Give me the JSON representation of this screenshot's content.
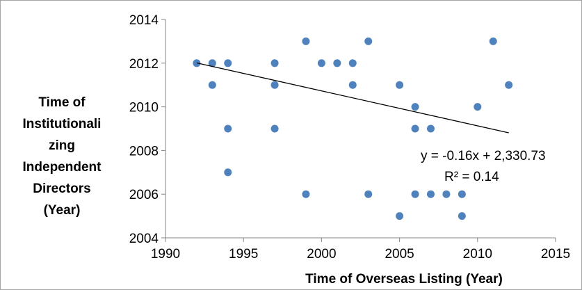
{
  "chart_data": {
    "type": "scatter",
    "title": "",
    "xlabel": "Time of Overseas Listing (Year)",
    "ylabel_lines": [
      "Time of",
      "Institutionali",
      "zing",
      "Independent",
      "Directors",
      "(Year)"
    ],
    "xlim": [
      1990,
      2015
    ],
    "ylim": [
      2004,
      2014
    ],
    "x_ticks": [
      "1990",
      "1995",
      "2000",
      "2005",
      "2010",
      "2015"
    ],
    "y_ticks": [
      "2004",
      "2006",
      "2008",
      "2010",
      "2012",
      "2014"
    ],
    "grid": false,
    "marker_color": "#4f81bd",
    "points": [
      {
        "x": 1992,
        "y": 2012
      },
      {
        "x": 1993,
        "y": 2012
      },
      {
        "x": 1993,
        "y": 2011
      },
      {
        "x": 1994,
        "y": 2012
      },
      {
        "x": 1994,
        "y": 2009
      },
      {
        "x": 1994,
        "y": 2007
      },
      {
        "x": 1997,
        "y": 2012
      },
      {
        "x": 1997,
        "y": 2011
      },
      {
        "x": 1997,
        "y": 2009
      },
      {
        "x": 1999,
        "y": 2013
      },
      {
        "x": 1999,
        "y": 2006
      },
      {
        "x": 2000,
        "y": 2012
      },
      {
        "x": 2001,
        "y": 2012
      },
      {
        "x": 2002,
        "y": 2012
      },
      {
        "x": 2002,
        "y": 2011
      },
      {
        "x": 2003,
        "y": 2013
      },
      {
        "x": 2003,
        "y": 2006
      },
      {
        "x": 2005,
        "y": 2011
      },
      {
        "x": 2005,
        "y": 2005
      },
      {
        "x": 2006,
        "y": 2010
      },
      {
        "x": 2006,
        "y": 2009
      },
      {
        "x": 2006,
        "y": 2006
      },
      {
        "x": 2007,
        "y": 2009
      },
      {
        "x": 2007,
        "y": 2006
      },
      {
        "x": 2008,
        "y": 2006
      },
      {
        "x": 2009,
        "y": 2006
      },
      {
        "x": 2009,
        "y": 2005
      },
      {
        "x": 2010,
        "y": 2010
      },
      {
        "x": 2011,
        "y": 2013
      },
      {
        "x": 2012,
        "y": 2011
      }
    ],
    "trendline": {
      "slope": -0.16,
      "intercept": 2330.73,
      "x_range": [
        1992,
        2012
      ],
      "equation_label": "y = -0.16x + 2,330.73",
      "r2_label": "R² = 0.14"
    }
  }
}
